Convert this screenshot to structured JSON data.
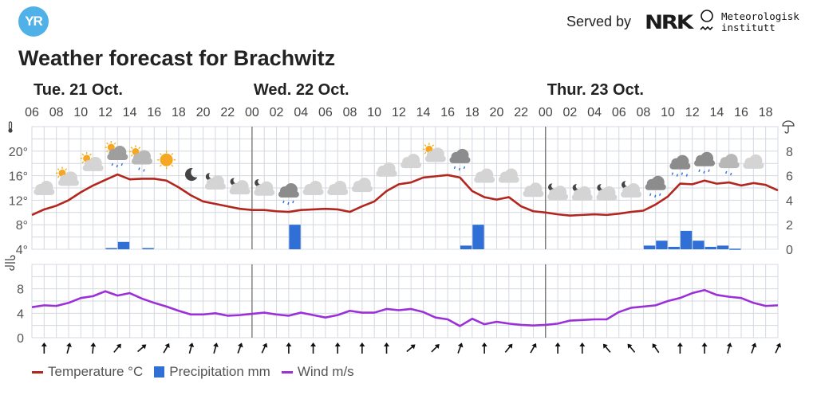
{
  "header": {
    "logo_text": "YR",
    "served_by": "Served by",
    "nrk_logo": "NRK",
    "met_line1": "Meteorologisk",
    "met_line2": "institutt"
  },
  "title": "Weather forecast for Brachwitz",
  "days": [
    {
      "label": "Tue. 21 Oct.",
      "start_index": 0
    },
    {
      "label": "Wed. 22 Oct.",
      "start_index": 18
    },
    {
      "label": "Thur. 23 Oct.",
      "start_index": 42
    }
  ],
  "legend": {
    "temperature": "Temperature °C",
    "precipitation": "Precipitation mm",
    "wind": "Wind m/s"
  },
  "colors": {
    "temperature": "#b3261e",
    "precipitation": "#2f6fd6",
    "wind": "#9b30d9",
    "grid": "#d3d8e0",
    "logo": "#4fb1e8"
  },
  "chart_data": {
    "type": "line",
    "start_hour": 6,
    "hour_labels": [
      "06",
      "08",
      "10",
      "12",
      "14",
      "16",
      "18",
      "20",
      "22",
      "00",
      "02",
      "04",
      "06",
      "08",
      "10",
      "12",
      "14",
      "16",
      "18",
      "20",
      "22",
      "00",
      "02",
      "04",
      "06",
      "08",
      "10",
      "12",
      "14",
      "16",
      "18"
    ],
    "temperature": {
      "name": "Temperature °C",
      "yticks": [
        "4°",
        "8°",
        "12°",
        "16°",
        "20°"
      ],
      "ytick_values": [
        4,
        8,
        12,
        16,
        20
      ],
      "ylim": [
        4,
        24
      ],
      "values": [
        9.6,
        10.5,
        11.1,
        12.0,
        13.3,
        14.4,
        15.3,
        16.2,
        15.4,
        15.5,
        15.5,
        15.2,
        14.1,
        12.8,
        11.8,
        11.4,
        11.0,
        10.6,
        10.4,
        10.4,
        10.2,
        10.1,
        10.4,
        10.5,
        10.6,
        10.5,
        10.1,
        11.0,
        11.8,
        13.5,
        14.6,
        14.9,
        15.7,
        15.9,
        16.1,
        15.7,
        13.5,
        12.5,
        12.1,
        12.5,
        11.0,
        10.2,
        10.0,
        9.7,
        9.5,
        9.6,
        9.7,
        9.6,
        9.8,
        10.1,
        10.3,
        11.3,
        12.6,
        14.7,
        14.6,
        15.2,
        14.7,
        14.9,
        14.4,
        14.8,
        14.5,
        13.6
      ]
    },
    "precipitation": {
      "name": "Precipitation mm",
      "yticks": [
        "0",
        "2",
        "4",
        "6",
        "8"
      ],
      "ytick_values": [
        0,
        2,
        4,
        6,
        8
      ],
      "ylim": [
        0,
        10
      ],
      "bars": [
        {
          "i": 6,
          "mm": 0.1
        },
        {
          "i": 7,
          "mm": 0.6
        },
        {
          "i": 9,
          "mm": 0.1
        },
        {
          "i": 21,
          "mm": 2.0
        },
        {
          "i": 35,
          "mm": 0.3
        },
        {
          "i": 36,
          "mm": 2.0
        },
        {
          "i": 50,
          "mm": 0.3
        },
        {
          "i": 51,
          "mm": 0.7
        },
        {
          "i": 52,
          "mm": 0.2
        },
        {
          "i": 53,
          "mm": 1.5
        },
        {
          "i": 54,
          "mm": 0.7
        },
        {
          "i": 55,
          "mm": 0.2
        },
        {
          "i": 56,
          "mm": 0.3
        },
        {
          "i": 57,
          "mm": 0.05
        }
      ]
    },
    "wind": {
      "name": "Wind m/s",
      "yticks": [
        "0",
        "4",
        "8"
      ],
      "ytick_values": [
        0,
        4,
        8
      ],
      "ylim": [
        0,
        12
      ],
      "values": [
        5.0,
        5.3,
        5.2,
        5.7,
        6.5,
        6.8,
        7.6,
        6.9,
        7.3,
        6.4,
        5.7,
        5.1,
        4.4,
        3.8,
        3.8,
        4.0,
        3.6,
        3.7,
        3.9,
        4.1,
        3.8,
        3.6,
        4.1,
        3.7,
        3.3,
        3.7,
        4.4,
        4.1,
        4.1,
        4.7,
        4.5,
        4.7,
        4.2,
        3.3,
        3.0,
        1.9,
        3.1,
        2.2,
        2.6,
        2.3,
        2.1,
        2.0,
        2.1,
        2.3,
        2.8,
        2.9,
        3.0,
        3.0,
        4.2,
        4.9,
        5.1,
        5.3,
        6.0,
        6.5,
        7.3,
        7.8,
        7.0,
        6.7,
        6.5,
        5.7,
        5.2,
        5.3
      ],
      "arrow_rotation_deg": [
        0,
        15,
        5,
        40,
        50,
        30,
        15,
        15,
        20,
        25,
        0,
        0,
        0,
        0,
        0,
        50,
        45,
        20,
        0,
        40,
        30,
        0,
        0,
        -40,
        -40,
        -35,
        0,
        0,
        15,
        20,
        25
      ]
    },
    "weather_symbols": [
      "cloudy",
      "partly-cloudy-day",
      "partly-cloudy-day",
      "rain-showers-day",
      "light-rain-showers-day",
      "clear-day",
      "clear-night",
      "partly-cloudy-night",
      "partly-cloudy-night",
      "partly-cloudy-night",
      "rain",
      "cloudy",
      "cloudy",
      "cloudy",
      "cloudy",
      "cloudy",
      "partly-cloudy-day",
      "rain",
      "cloudy",
      "cloudy",
      "cloudy",
      "partly-cloudy-night",
      "partly-cloudy-night",
      "partly-cloudy-night",
      "partly-cloudy-night",
      "rain",
      "heavy-rain",
      "rain",
      "light-rain",
      "cloudy"
    ]
  }
}
